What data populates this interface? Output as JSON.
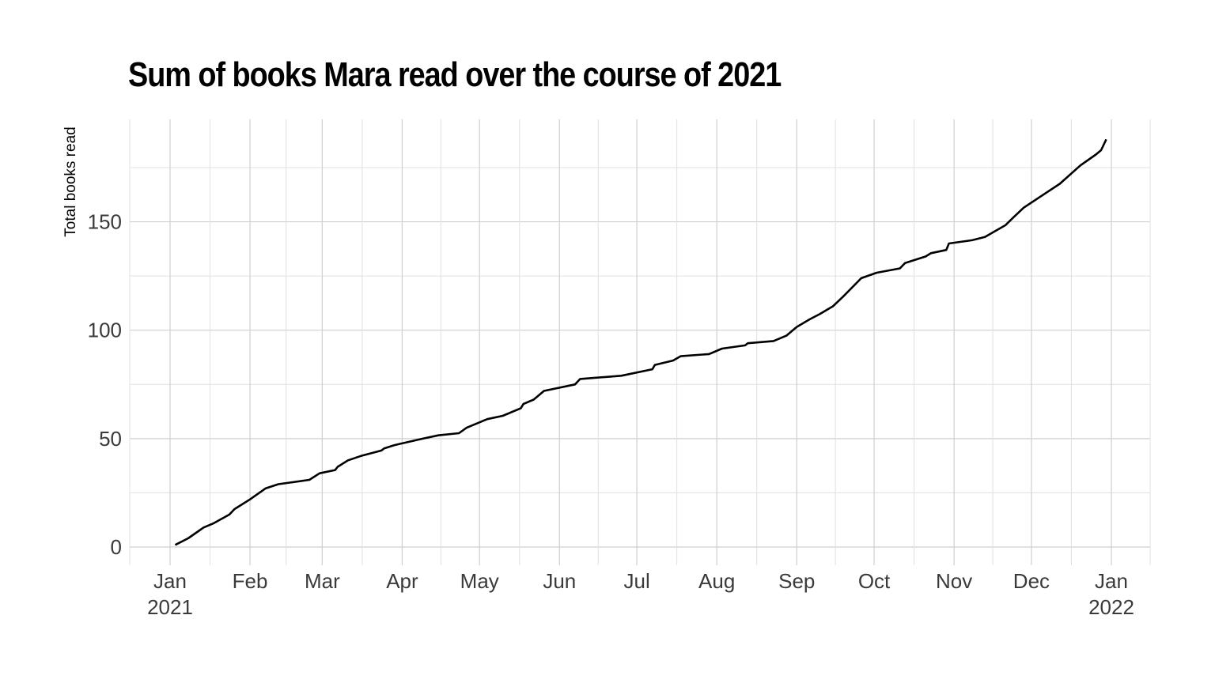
{
  "chart_data": {
    "type": "line",
    "title": "Sum of books Mara read over the course of 2021",
    "xlabel": "",
    "ylabel": "Total books read",
    "ylim": [
      -8,
      197
    ],
    "yticks": [
      0,
      50,
      100,
      150
    ],
    "xticks": [
      {
        "label": "Jan",
        "sub": "2021",
        "day": 0
      },
      {
        "label": "Feb",
        "sub": "",
        "day": 31
      },
      {
        "label": "Mar",
        "sub": "",
        "day": 59
      },
      {
        "label": "Apr",
        "sub": "",
        "day": 90
      },
      {
        "label": "May",
        "sub": "",
        "day": 120
      },
      {
        "label": "Jun",
        "sub": "",
        "day": 151
      },
      {
        "label": "Jul",
        "sub": "",
        "day": 181
      },
      {
        "label": "Aug",
        "sub": "",
        "day": 212
      },
      {
        "label": "Sep",
        "sub": "",
        "day": 243
      },
      {
        "label": "Oct",
        "sub": "",
        "day": 273
      },
      {
        "label": "Nov",
        "sub": "",
        "day": 304
      },
      {
        "label": "Dec",
        "sub": "",
        "day": 334
      },
      {
        "label": "Jan",
        "sub": "2022",
        "day": 365
      }
    ],
    "grid": true,
    "legend": "none",
    "series": [
      {
        "name": "Total books read",
        "x": [
          "2021-01-03",
          "2021-01-08",
          "2021-01-14",
          "2021-01-18",
          "2021-01-24",
          "2021-01-26",
          "2021-02-01",
          "2021-02-07",
          "2021-02-12",
          "2021-02-24",
          "2021-02-28",
          "2021-03-06",
          "2021-03-07",
          "2021-03-11",
          "2021-03-16",
          "2021-03-24",
          "2021-03-25",
          "2021-03-29",
          "2021-04-09",
          "2021-04-15",
          "2021-04-23",
          "2021-04-26",
          "2021-05-04",
          "2021-05-10",
          "2021-05-17",
          "2021-05-18",
          "2021-05-22",
          "2021-05-26",
          "2021-06-07",
          "2021-06-09",
          "2021-06-25",
          "2021-07-07",
          "2021-07-08",
          "2021-07-15",
          "2021-07-18",
          "2021-07-29",
          "2021-08-03",
          "2021-08-12",
          "2021-08-13",
          "2021-08-23",
          "2021-08-28",
          "2021-09-01",
          "2021-09-06",
          "2021-09-10",
          "2021-09-15",
          "2021-09-19",
          "2021-09-26",
          "2021-10-02",
          "2021-10-11",
          "2021-10-13",
          "2021-10-21",
          "2021-10-23",
          "2021-10-29",
          "2021-10-30",
          "2021-11-08",
          "2021-11-13",
          "2021-11-21",
          "2021-11-24",
          "2021-11-28",
          "2021-12-05",
          "2021-12-12",
          "2021-12-20",
          "2021-12-26",
          "2021-12-28",
          "2021-12-31"
        ],
        "day": [
          2,
          7,
          13,
          17,
          23,
          25,
          31,
          37,
          42,
          54,
          58,
          64,
          65,
          69,
          74,
          82,
          83,
          87,
          98,
          104,
          112,
          115,
          123,
          129,
          136,
          137,
          141,
          145,
          157,
          159,
          175,
          187,
          188,
          195,
          198,
          209,
          214,
          223,
          224,
          234,
          239,
          243,
          248,
          252,
          257,
          261,
          268,
          274,
          283,
          285,
          293,
          295,
          301,
          302,
          311,
          316,
          324,
          327,
          331,
          338,
          345,
          353,
          359,
          361,
          363
        ],
        "values": [
          1,
          4,
          9,
          11,
          15,
          17.5,
          22,
          27,
          29,
          31,
          34,
          35.5,
          37,
          40,
          42,
          44.5,
          45.5,
          47,
          50,
          51.5,
          52.5,
          55,
          59,
          60.5,
          64,
          66,
          68,
          72,
          75,
          77.5,
          79,
          82,
          84,
          86,
          88,
          89,
          91.5,
          93,
          94,
          95,
          97.5,
          101.5,
          105,
          107.5,
          111,
          115.5,
          124,
          126.5,
          128.5,
          131,
          134,
          135.5,
          137,
          140,
          141.5,
          143,
          148.5,
          152,
          156.5,
          162,
          167.5,
          176,
          181,
          183,
          188
        ]
      }
    ]
  }
}
